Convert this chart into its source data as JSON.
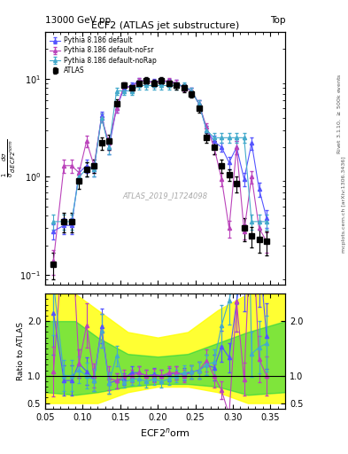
{
  "title": "ECF2 (ATLAS jet substructure)",
  "header_left": "13000 GeV pp",
  "header_right": "Top",
  "xlabel": "ECF2$^n$orm",
  "ylabel_main": "$\\frac{1}{\\sigma}\\frac{d\\sigma}{d\\,ECF2^norm}$",
  "ylabel_ratio": "Ratio to ATLAS",
  "watermark": "ATLAS_2019_I1724098",
  "right_label_top": "Rivet 3.1.10, $\\geq$ 500k events",
  "right_label_bottom": "mcplots.cern.ch [arXiv:1306.3436]",
  "x_atlas": [
    0.061,
    0.075,
    0.085,
    0.095,
    0.105,
    0.115,
    0.125,
    0.135,
    0.145,
    0.155,
    0.165,
    0.175,
    0.185,
    0.195,
    0.205,
    0.215,
    0.225,
    0.235,
    0.245,
    0.255,
    0.265,
    0.275,
    0.285,
    0.295,
    0.305,
    0.315,
    0.325,
    0.335,
    0.345
  ],
  "y_atlas": [
    0.13,
    0.35,
    0.35,
    0.9,
    1.2,
    1.3,
    2.2,
    2.3,
    5.5,
    8.5,
    8.0,
    9.0,
    9.5,
    9.0,
    9.5,
    9.0,
    8.5,
    8.0,
    7.0,
    5.0,
    2.5,
    2.0,
    1.3,
    1.05,
    0.85,
    0.3,
    0.25,
    0.23,
    0.22
  ],
  "yerr_atlas": [
    0.04,
    0.08,
    0.08,
    0.15,
    0.2,
    0.2,
    0.3,
    0.4,
    0.6,
    0.7,
    0.7,
    0.8,
    0.8,
    0.8,
    0.8,
    0.8,
    0.7,
    0.7,
    0.6,
    0.5,
    0.3,
    0.3,
    0.2,
    0.15,
    0.15,
    0.08,
    0.06,
    0.06,
    0.06
  ],
  "x_py_def": [
    0.061,
    0.075,
    0.085,
    0.095,
    0.105,
    0.115,
    0.125,
    0.135,
    0.145,
    0.155,
    0.165,
    0.175,
    0.185,
    0.195,
    0.205,
    0.215,
    0.225,
    0.235,
    0.245,
    0.255,
    0.265,
    0.275,
    0.285,
    0.295,
    0.305,
    0.315,
    0.325,
    0.335,
    0.345
  ],
  "y_py_def": [
    0.28,
    0.32,
    0.32,
    1.1,
    1.3,
    1.2,
    4.2,
    2.0,
    5.0,
    8.0,
    8.5,
    9.5,
    9.5,
    9.2,
    9.5,
    9.2,
    9.0,
    8.2,
    7.5,
    5.5,
    3.0,
    2.3,
    2.0,
    1.4,
    2.0,
    0.95,
    2.2,
    0.75,
    0.38
  ],
  "yerr_py_def": [
    0.05,
    0.06,
    0.06,
    0.15,
    0.2,
    0.2,
    0.4,
    0.3,
    0.5,
    0.6,
    0.6,
    0.7,
    0.7,
    0.7,
    0.7,
    0.7,
    0.7,
    0.6,
    0.6,
    0.5,
    0.3,
    0.3,
    0.2,
    0.2,
    0.3,
    0.15,
    0.3,
    0.12,
    0.08
  ],
  "color_py_def": "#5555ff",
  "x_py_nofsr": [
    0.061,
    0.075,
    0.085,
    0.095,
    0.105,
    0.115,
    0.125,
    0.135,
    0.145,
    0.155,
    0.165,
    0.175,
    0.185,
    0.195,
    0.205,
    0.215,
    0.225,
    0.235,
    0.245,
    0.255,
    0.265,
    0.275,
    0.285,
    0.295,
    0.305,
    0.315,
    0.325,
    0.335,
    0.345
  ],
  "y_py_nofsr": [
    0.14,
    1.3,
    1.3,
    1.1,
    2.3,
    1.3,
    4.0,
    2.2,
    5.0,
    8.5,
    8.0,
    9.5,
    9.5,
    9.0,
    9.5,
    9.5,
    9.0,
    8.0,
    7.5,
    5.5,
    3.2,
    2.0,
    0.95,
    0.3,
    2.0,
    0.28,
    1.0,
    0.3,
    0.22
  ],
  "yerr_py_nofsr": [
    0.04,
    0.2,
    0.2,
    0.15,
    0.3,
    0.2,
    0.4,
    0.3,
    0.5,
    0.7,
    0.6,
    0.7,
    0.7,
    0.7,
    0.7,
    0.7,
    0.7,
    0.6,
    0.6,
    0.5,
    0.3,
    0.3,
    0.15,
    0.06,
    0.3,
    0.05,
    0.15,
    0.06,
    0.05
  ],
  "color_py_nofsr": "#bb44bb",
  "x_py_norap": [
    0.061,
    0.075,
    0.085,
    0.095,
    0.105,
    0.115,
    0.125,
    0.135,
    0.145,
    0.155,
    0.165,
    0.175,
    0.185,
    0.195,
    0.205,
    0.215,
    0.225,
    0.235,
    0.245,
    0.255,
    0.265,
    0.275,
    0.285,
    0.295,
    0.305,
    0.315,
    0.325,
    0.335,
    0.345
  ],
  "y_py_norap": [
    0.35,
    0.35,
    0.35,
    1.0,
    1.2,
    1.2,
    4.0,
    2.0,
    7.5,
    7.5,
    7.5,
    8.5,
    8.5,
    8.5,
    8.5,
    8.5,
    8.5,
    8.5,
    7.5,
    5.5,
    3.0,
    2.5,
    2.5,
    2.5,
    2.5,
    2.5,
    0.35,
    0.35,
    0.35
  ],
  "yerr_py_norap": [
    0.06,
    0.06,
    0.06,
    0.15,
    0.2,
    0.2,
    0.4,
    0.3,
    0.6,
    0.6,
    0.6,
    0.7,
    0.7,
    0.7,
    0.7,
    0.7,
    0.7,
    0.7,
    0.6,
    0.5,
    0.3,
    0.3,
    0.3,
    0.3,
    0.3,
    0.3,
    0.06,
    0.06,
    0.06
  ],
  "color_py_norap": "#44aacc",
  "ylim_main": [
    0.08,
    30
  ],
  "ylim_ratio": [
    0.4,
    2.5
  ],
  "xlim": [
    0.05,
    0.37
  ],
  "band_yellow_x": [
    0.05,
    0.09,
    0.12,
    0.16,
    0.2,
    0.24,
    0.28,
    0.32,
    0.37
  ],
  "band_yellow_low": [
    0.5,
    0.5,
    0.5,
    0.7,
    0.8,
    0.8,
    0.7,
    0.5,
    0.5
  ],
  "band_yellow_high": [
    2.5,
    2.5,
    2.2,
    1.8,
    1.7,
    1.8,
    2.2,
    2.5,
    2.5
  ],
  "band_green_x": [
    0.05,
    0.09,
    0.12,
    0.16,
    0.2,
    0.24,
    0.28,
    0.32,
    0.37
  ],
  "band_green_low": [
    0.7,
    0.65,
    0.7,
    0.8,
    0.85,
    0.85,
    0.8,
    0.65,
    0.7
  ],
  "band_green_high": [
    2.0,
    2.0,
    1.7,
    1.4,
    1.35,
    1.4,
    1.6,
    1.8,
    2.0
  ]
}
